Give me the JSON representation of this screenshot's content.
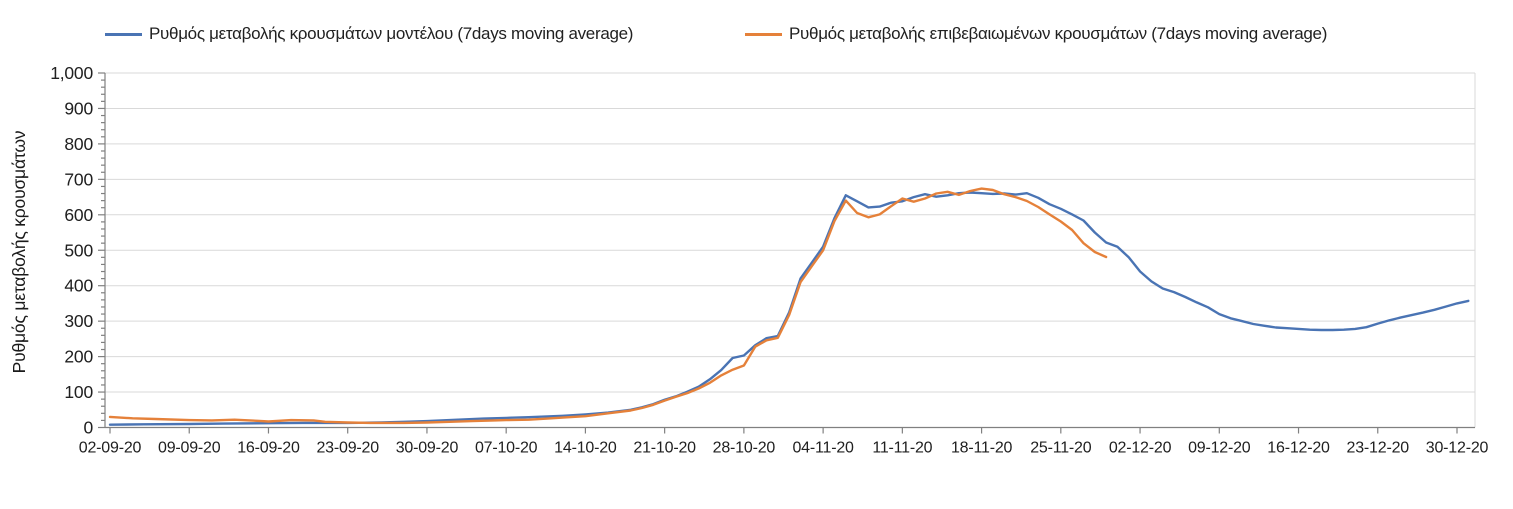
{
  "legend": [
    {
      "id": "model",
      "label": "Ρυθμός μεταβολής κρουσμάτων μοντέλου (7days moving average)",
      "color": "#4a74b4"
    },
    {
      "id": "confirmed",
      "label": "Ρυθμός μεταβολής επιβεβαιωμένων κρουσμάτων (7days moving average)",
      "color": "#e5813a"
    }
  ],
  "chart_data": {
    "type": "line",
    "title": "",
    "xlabel": "",
    "ylabel": "Ρυθμός μεταβολής κρουσμάτων",
    "ylim": [
      0,
      1000
    ],
    "y_tick_step": 100,
    "y_minor_tick_step": 20,
    "y_tick_labels": [
      "0",
      "100",
      "200",
      "300",
      "400",
      "500",
      "600",
      "700",
      "800",
      "900",
      "1,000"
    ],
    "grid": true,
    "legend_position": "top",
    "x_tick_labels": [
      "02-09-20",
      "09-09-20",
      "16-09-20",
      "23-09-20",
      "30-09-20",
      "07-10-20",
      "14-10-20",
      "21-10-20",
      "28-10-20",
      "04-11-20",
      "11-11-20",
      "18-11-20",
      "25-11-20",
      "02-12-20",
      "09-12-20",
      "16-12-20",
      "23-12-20",
      "30-12-20"
    ],
    "x_tick_days": [
      0,
      7,
      14,
      21,
      28,
      35,
      42,
      49,
      56,
      63,
      70,
      77,
      84,
      91,
      98,
      105,
      112,
      119
    ],
    "colors": {
      "grid": "#d9d9d9",
      "axis": "#808080",
      "tick_text": "#202020"
    },
    "series": [
      {
        "name": "Ρυθμός μεταβολής κρουσμάτων μοντέλου (7days moving average)",
        "color": "#4a74b4",
        "points": [
          [
            0,
            8
          ],
          [
            3,
            9
          ],
          [
            7,
            10
          ],
          [
            10,
            11
          ],
          [
            14,
            12
          ],
          [
            17,
            13
          ],
          [
            21,
            13
          ],
          [
            24,
            14
          ],
          [
            26,
            16
          ],
          [
            28,
            18
          ],
          [
            30,
            21
          ],
          [
            33,
            25
          ],
          [
            35,
            27
          ],
          [
            37,
            29
          ],
          [
            40,
            33
          ],
          [
            42,
            37
          ],
          [
            44,
            42
          ],
          [
            46,
            50
          ],
          [
            47,
            57
          ],
          [
            48,
            66
          ],
          [
            49,
            78
          ],
          [
            50,
            88
          ],
          [
            51,
            101
          ],
          [
            52,
            115
          ],
          [
            53,
            136
          ],
          [
            54,
            162
          ],
          [
            55,
            196
          ],
          [
            56,
            203
          ],
          [
            57,
            232
          ],
          [
            58,
            252
          ],
          [
            59,
            258
          ],
          [
            60,
            325
          ],
          [
            61,
            420
          ],
          [
            62,
            465
          ],
          [
            63,
            510
          ],
          [
            64,
            590
          ],
          [
            65,
            655
          ],
          [
            66,
            638
          ],
          [
            67,
            621
          ],
          [
            68,
            623
          ],
          [
            69,
            634
          ],
          [
            70,
            638
          ],
          [
            71,
            650
          ],
          [
            72,
            658
          ],
          [
            73,
            651
          ],
          [
            74,
            655
          ],
          [
            75,
            661
          ],
          [
            76,
            663
          ],
          [
            77,
            661
          ],
          [
            78,
            659
          ],
          [
            79,
            660
          ],
          [
            80,
            657
          ],
          [
            81,
            661
          ],
          [
            82,
            648
          ],
          [
            83,
            630
          ],
          [
            84,
            617
          ],
          [
            85,
            601
          ],
          [
            86,
            584
          ],
          [
            87,
            550
          ],
          [
            88,
            522
          ],
          [
            89,
            510
          ],
          [
            90,
            480
          ],
          [
            91,
            440
          ],
          [
            92,
            412
          ],
          [
            93,
            392
          ],
          [
            94,
            382
          ],
          [
            95,
            368
          ],
          [
            96,
            353
          ],
          [
            97,
            339
          ],
          [
            98,
            320
          ],
          [
            99,
            308
          ],
          [
            100,
            300
          ],
          [
            101,
            292
          ],
          [
            102,
            287
          ],
          [
            103,
            282
          ],
          [
            104,
            280
          ],
          [
            105,
            278
          ],
          [
            106,
            276
          ],
          [
            107,
            275
          ],
          [
            108,
            275
          ],
          [
            109,
            276
          ],
          [
            110,
            278
          ],
          [
            111,
            283
          ],
          [
            112,
            293
          ],
          [
            113,
            302
          ],
          [
            114,
            310
          ],
          [
            115,
            317
          ],
          [
            116,
            324
          ],
          [
            117,
            332
          ],
          [
            118,
            341
          ],
          [
            119,
            350
          ],
          [
            120,
            357
          ]
        ]
      },
      {
        "name": "Ρυθμός μεταβολής επιβεβαιωμένων κρουσμάτων (7days moving average)",
        "color": "#e5813a",
        "points": [
          [
            0,
            30
          ],
          [
            2,
            26
          ],
          [
            4,
            24
          ],
          [
            7,
            21
          ],
          [
            9,
            20
          ],
          [
            11,
            22
          ],
          [
            13,
            19
          ],
          [
            14,
            17
          ],
          [
            16,
            21
          ],
          [
            18,
            20
          ],
          [
            19,
            16
          ],
          [
            21,
            14
          ],
          [
            23,
            13
          ],
          [
            26,
            13
          ],
          [
            28,
            14
          ],
          [
            30,
            16
          ],
          [
            32,
            18
          ],
          [
            34,
            20
          ],
          [
            35,
            21
          ],
          [
            37,
            22
          ],
          [
            39,
            26
          ],
          [
            40,
            28
          ],
          [
            42,
            32
          ],
          [
            44,
            40
          ],
          [
            46,
            48
          ],
          [
            47,
            55
          ],
          [
            48,
            64
          ],
          [
            49,
            76
          ],
          [
            50,
            87
          ],
          [
            51,
            97
          ],
          [
            52,
            110
          ],
          [
            53,
            126
          ],
          [
            54,
            147
          ],
          [
            55,
            163
          ],
          [
            56,
            175
          ],
          [
            57,
            228
          ],
          [
            58,
            246
          ],
          [
            59,
            253
          ],
          [
            60,
            318
          ],
          [
            61,
            410
          ],
          [
            62,
            455
          ],
          [
            63,
            500
          ],
          [
            64,
            582
          ],
          [
            65,
            640
          ],
          [
            66,
            605
          ],
          [
            67,
            593
          ],
          [
            68,
            601
          ],
          [
            69,
            624
          ],
          [
            70,
            646
          ],
          [
            71,
            637
          ],
          [
            72,
            646
          ],
          [
            73,
            660
          ],
          [
            74,
            665
          ],
          [
            75,
            656
          ],
          [
            76,
            667
          ],
          [
            77,
            674
          ],
          [
            78,
            670
          ],
          [
            79,
            658
          ],
          [
            80,
            650
          ],
          [
            81,
            639
          ],
          [
            82,
            622
          ],
          [
            83,
            601
          ],
          [
            84,
            581
          ],
          [
            85,
            557
          ],
          [
            86,
            520
          ],
          [
            87,
            495
          ],
          [
            88,
            481
          ]
        ]
      }
    ]
  }
}
